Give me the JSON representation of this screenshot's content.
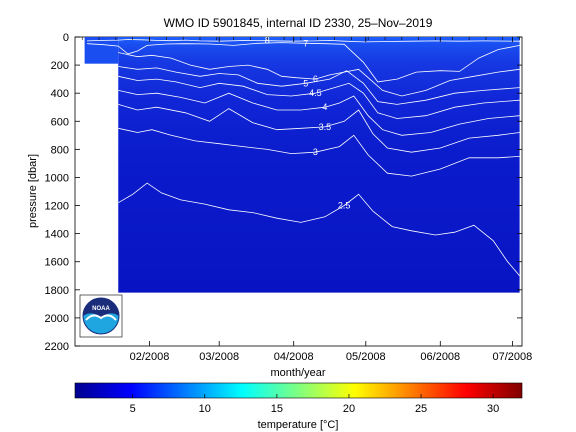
{
  "chart_data": {
    "type": "heatmap",
    "title": "WMO ID 5901845, internal ID 2330, 25–Nov–2019",
    "xlabel": "month/year",
    "ylabel": "pressure [dbar]",
    "x_tick_labels": [
      "02/2008",
      "03/2008",
      "04/2008",
      "05/2008",
      "06/2008",
      "07/2008"
    ],
    "x_tick_days": [
      31,
      60,
      91,
      121,
      152,
      182
    ],
    "xlim_days": [
      0,
      186
    ],
    "y_ticks": [
      0,
      200,
      400,
      600,
      800,
      1000,
      1200,
      1400,
      1600,
      1800,
      2000,
      2200
    ],
    "ylim": [
      0,
      2200
    ],
    "data_extent": {
      "day_start": 18,
      "day_end": 185,
      "pressure_max": 1820
    },
    "colorbar": {
      "label": "temperature [°C]",
      "range": [
        1,
        32
      ],
      "ticks": [
        5,
        10,
        15,
        20,
        25,
        30
      ],
      "colormap": "jet"
    },
    "contours": [
      {
        "level": "8",
        "points": [
          [
            5,
            28
          ],
          [
            12,
            24
          ],
          [
            18,
            22
          ],
          [
            22,
            18
          ],
          [
            28,
            20
          ],
          [
            34,
            24
          ],
          [
            40,
            26
          ],
          [
            46,
            22
          ],
          [
            52,
            28
          ],
          [
            60,
            30
          ],
          [
            70,
            25
          ],
          [
            80,
            26
          ],
          [
            90,
            30
          ],
          [
            100,
            28
          ],
          [
            106,
            24
          ],
          [
            112,
            30
          ],
          [
            120,
            35
          ],
          [
            130,
            32
          ],
          [
            140,
            30
          ],
          [
            150,
            28
          ],
          [
            160,
            30
          ],
          [
            170,
            28
          ],
          [
            185,
            30
          ]
        ]
      },
      {
        "level": "7",
        "points": [
          [
            5,
            48
          ],
          [
            12,
            55
          ],
          [
            18,
            65
          ],
          [
            22,
            120
          ],
          [
            26,
            100
          ],
          [
            30,
            60
          ],
          [
            38,
            50
          ],
          [
            46,
            48
          ],
          [
            56,
            50
          ],
          [
            66,
            60
          ],
          [
            76,
            45
          ],
          [
            86,
            40
          ],
          [
            96,
            45
          ],
          [
            104,
            48
          ],
          [
            112,
            52
          ],
          [
            120,
            180
          ],
          [
            126,
            320
          ],
          [
            134,
            300
          ],
          [
            142,
            250
          ],
          [
            152,
            240
          ],
          [
            160,
            245
          ],
          [
            168,
            150
          ],
          [
            176,
            90
          ],
          [
            185,
            60
          ]
        ]
      },
      {
        "level": "6",
        "points": [
          [
            18,
            110
          ],
          [
            26,
            140
          ],
          [
            32,
            130
          ],
          [
            40,
            150
          ],
          [
            48,
            200
          ],
          [
            56,
            230
          ],
          [
            64,
            210
          ],
          [
            72,
            200
          ],
          [
            80,
            230
          ],
          [
            86,
            280
          ],
          [
            92,
            290
          ],
          [
            100,
            300
          ],
          [
            106,
            270
          ],
          [
            112,
            250
          ],
          [
            118,
            230
          ],
          [
            122,
            290
          ],
          [
            128,
            380
          ],
          [
            136,
            420
          ],
          [
            146,
            380
          ],
          [
            156,
            310
          ],
          [
            166,
            280
          ],
          [
            176,
            250
          ],
          [
            185,
            230
          ]
        ]
      },
      {
        "level": "5",
        "points": [
          [
            18,
            210
          ],
          [
            26,
            230
          ],
          [
            34,
            220
          ],
          [
            42,
            250
          ],
          [
            52,
            280
          ],
          [
            60,
            260
          ],
          [
            68,
            270
          ],
          [
            76,
            330
          ],
          [
            86,
            350
          ],
          [
            96,
            330
          ],
          [
            106,
            300
          ],
          [
            113,
            240
          ],
          [
            120,
            330
          ],
          [
            126,
            460
          ],
          [
            134,
            480
          ],
          [
            146,
            450
          ],
          [
            158,
            400
          ],
          [
            170,
            380
          ],
          [
            185,
            360
          ]
        ]
      },
      {
        "level": "4.5",
        "points": [
          [
            18,
            280
          ],
          [
            26,
            310
          ],
          [
            34,
            300
          ],
          [
            42,
            320
          ],
          [
            52,
            360
          ],
          [
            60,
            330
          ],
          [
            70,
            350
          ],
          [
            80,
            410
          ],
          [
            90,
            420
          ],
          [
            100,
            400
          ],
          [
            108,
            360
          ],
          [
            114,
            330
          ],
          [
            120,
            400
          ],
          [
            126,
            540
          ],
          [
            134,
            580
          ],
          [
            146,
            560
          ],
          [
            158,
            500
          ],
          [
            170,
            470
          ],
          [
            185,
            450
          ]
        ]
      },
      {
        "level": "4",
        "points": [
          [
            18,
            380
          ],
          [
            26,
            410
          ],
          [
            34,
            400
          ],
          [
            44,
            430
          ],
          [
            54,
            470
          ],
          [
            64,
            400
          ],
          [
            74,
            470
          ],
          [
            84,
            520
          ],
          [
            94,
            520
          ],
          [
            104,
            500
          ],
          [
            110,
            470
          ],
          [
            116,
            420
          ],
          [
            122,
            560
          ],
          [
            128,
            660
          ],
          [
            136,
            700
          ],
          [
            148,
            680
          ],
          [
            160,
            620
          ],
          [
            172,
            580
          ],
          [
            185,
            560
          ]
        ]
      },
      {
        "level": "3.5",
        "points": [
          [
            18,
            480
          ],
          [
            26,
            520
          ],
          [
            34,
            500
          ],
          [
            46,
            540
          ],
          [
            56,
            600
          ],
          [
            64,
            510
          ],
          [
            74,
            610
          ],
          [
            84,
            660
          ],
          [
            94,
            650
          ],
          [
            104,
            640
          ],
          [
            112,
            600
          ],
          [
            118,
            520
          ],
          [
            124,
            690
          ],
          [
            130,
            790
          ],
          [
            140,
            820
          ],
          [
            152,
            790
          ],
          [
            164,
            720
          ],
          [
            176,
            700
          ],
          [
            185,
            680
          ]
        ]
      },
      {
        "level": "3",
        "points": [
          [
            18,
            650
          ],
          [
            26,
            680
          ],
          [
            32,
            660
          ],
          [
            40,
            700
          ],
          [
            50,
            740
          ],
          [
            60,
            760
          ],
          [
            70,
            780
          ],
          [
            80,
            800
          ],
          [
            90,
            830
          ],
          [
            100,
            820
          ],
          [
            110,
            780
          ],
          [
            116,
            700
          ],
          [
            122,
            840
          ],
          [
            130,
            970
          ],
          [
            140,
            990
          ],
          [
            152,
            940
          ],
          [
            164,
            860
          ],
          [
            176,
            860
          ],
          [
            185,
            850
          ]
        ]
      },
      {
        "level": "2.5",
        "points": [
          [
            18,
            1180
          ],
          [
            24,
            1120
          ],
          [
            30,
            1040
          ],
          [
            36,
            1110
          ],
          [
            44,
            1160
          ],
          [
            54,
            1190
          ],
          [
            64,
            1230
          ],
          [
            74,
            1250
          ],
          [
            84,
            1290
          ],
          [
            94,
            1320
          ],
          [
            104,
            1280
          ],
          [
            112,
            1200
          ],
          [
            118,
            1120
          ],
          [
            124,
            1240
          ],
          [
            132,
            1350
          ],
          [
            140,
            1380
          ],
          [
            150,
            1410
          ],
          [
            158,
            1390
          ],
          [
            166,
            1340
          ],
          [
            174,
            1450
          ],
          [
            180,
            1600
          ],
          [
            185,
            1700
          ]
        ]
      }
    ]
  },
  "logo": {
    "text": "NOAA"
  }
}
